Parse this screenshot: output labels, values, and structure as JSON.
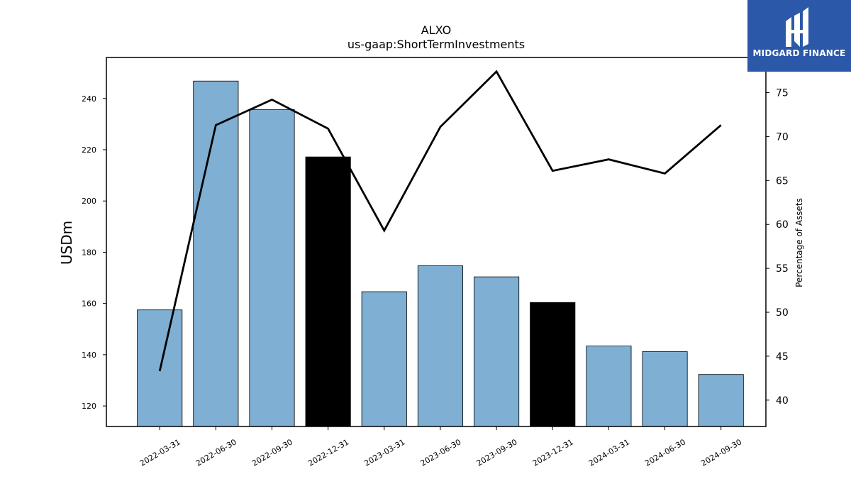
{
  "chart_data": {
    "type": "bar",
    "title": "ALXO",
    "subtitle": "us-gaap:ShortTermInvestments",
    "ylabel": "USDm",
    "y2label": "Percentage of Assets",
    "categories": [
      "2022-03-31",
      "2022-06-30",
      "2022-09-30",
      "2022-12-31",
      "2023-03-31",
      "2023-06-30",
      "2023-09-30",
      "2023-12-31",
      "2024-03-31",
      "2024-06-30",
      "2024-09-30"
    ],
    "series": [
      {
        "type": "bar",
        "values": [
          157.5,
          246.8,
          235.7,
          217.2,
          164.6,
          174.7,
          170.4,
          160.4,
          143.4,
          141.2,
          132.3
        ],
        "colors": [
          "#7fafd3",
          "#7fafd3",
          "#7fafd3",
          "#000000",
          "#7fafd3",
          "#7fafd3",
          "#7fafd3",
          "#000000",
          "#7fafd3",
          "#7fafd3",
          "#7fafd3"
        ]
      },
      {
        "type": "line",
        "axis": "right",
        "color": "#000000",
        "values": [
          43.3,
          71.3,
          74.2,
          70.9,
          59.3,
          71.1,
          77.4,
          66.1,
          67.4,
          65.8,
          71.3
        ]
      }
    ],
    "ylim": [
      112,
      256
    ],
    "yticks": [
      120,
      140,
      160,
      180,
      200,
      220,
      240
    ],
    "y2lim": [
      37,
      79
    ],
    "y2ticks": [
      40,
      45,
      50,
      55,
      60,
      65,
      70,
      75
    ],
    "grid": false
  },
  "logo": {
    "text": "MIDGARD FINANCE",
    "color": "#2b58a8"
  }
}
